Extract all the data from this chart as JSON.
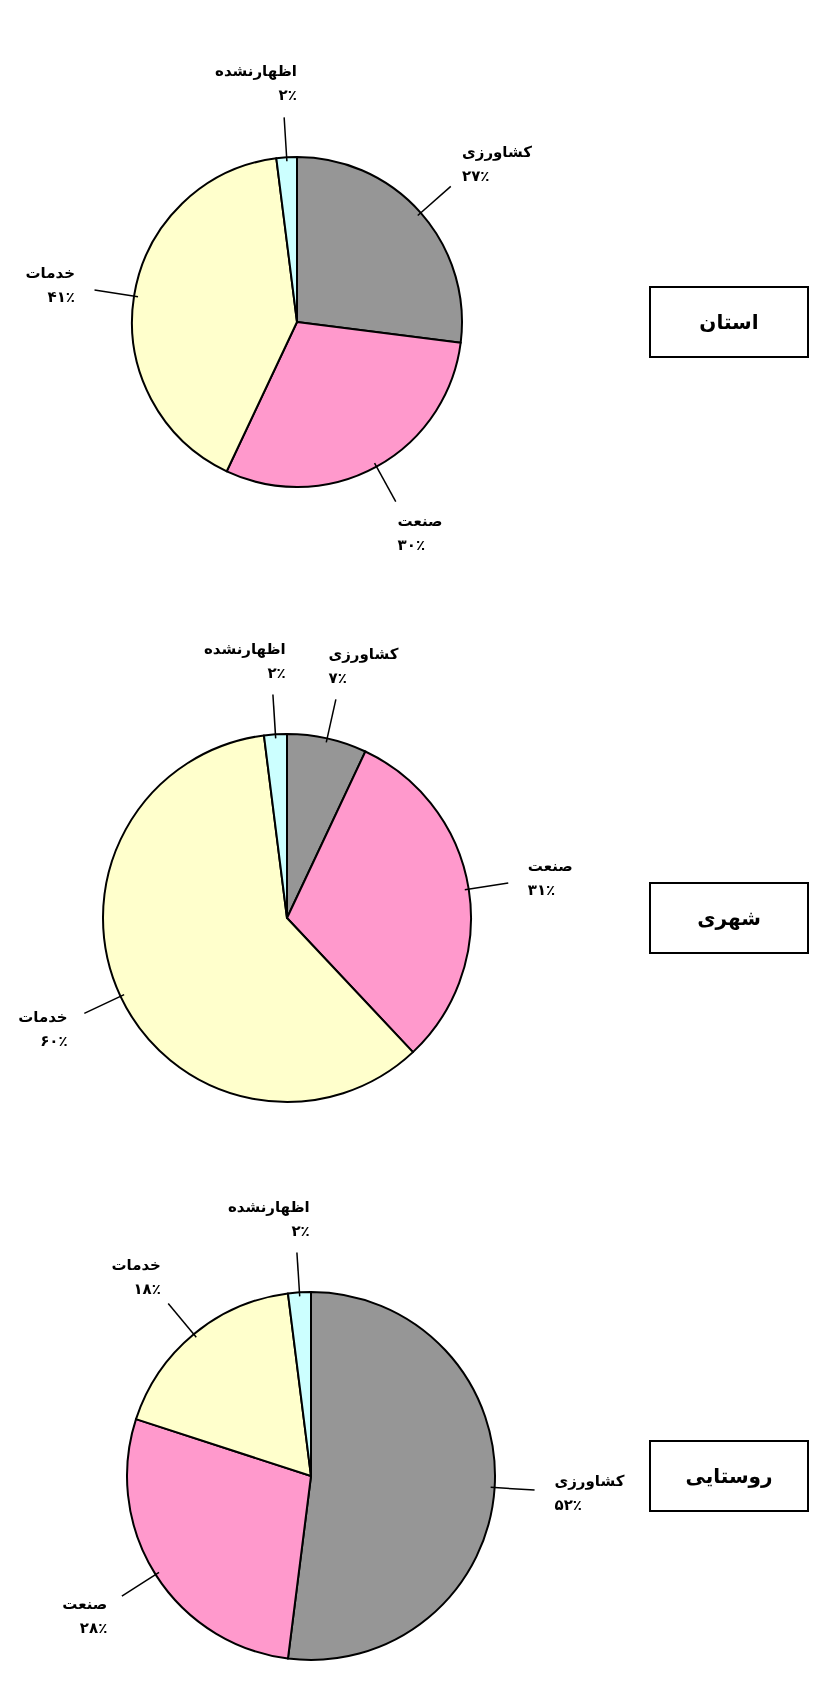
{
  "chart_data": [
    {
      "type": "pie",
      "title": "استان",
      "categories": [
        "کشاورزی",
        "صنعت",
        "خدمات",
        "اظهارنشده"
      ],
      "values": [
        27,
        30,
        41,
        2
      ],
      "colors": [
        "#969696",
        "#ff99cc",
        "#ffffcc",
        "#ccffff"
      ],
      "value_labels": [
        "۲۷٪",
        "۳۰٪",
        "۴۱٪",
        "۲٪"
      ]
    },
    {
      "type": "pie",
      "title": "شهری",
      "categories": [
        "کشاورزی",
        "صنعت",
        "خدمات",
        "اظهارنشده"
      ],
      "values": [
        7,
        31,
        60,
        2
      ],
      "colors": [
        "#969696",
        "#ff99cc",
        "#ffffcc",
        "#ccffff"
      ],
      "value_labels": [
        "۷٪",
        "۳۱٪",
        "۶۰٪",
        "۲٪"
      ]
    },
    {
      "type": "pie",
      "title": "روستایی",
      "categories": [
        "کشاورزی",
        "صنعت",
        "خدمات",
        "اظهارنشده"
      ],
      "values": [
        52,
        28,
        18,
        2
      ],
      "colors": [
        "#969696",
        "#ff99cc",
        "#ffffcc",
        "#ccffff"
      ],
      "value_labels": [
        "۵۲٪",
        "۲۸٪",
        "۱۸٪",
        "۲٪"
      ]
    }
  ]
}
